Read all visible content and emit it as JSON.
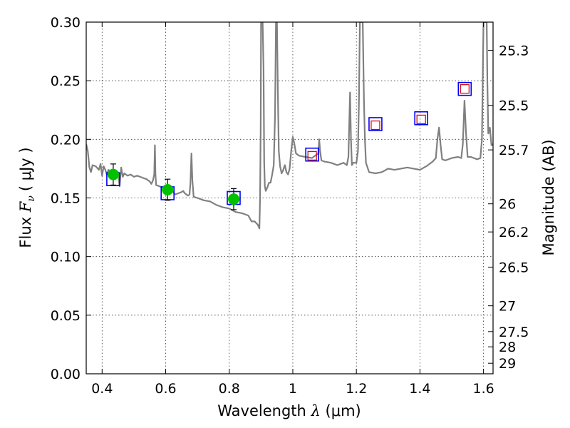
{
  "chart_data": {
    "type": "line",
    "xlabel": "Wavelength",
    "xlabel_symbol": "λ",
    "xlabel_unit": "(μm)",
    "ylabel": "Flux",
    "ylabel_symbol": "F",
    "ylabel_subscript": "ν",
    "ylabel_unit": "( μJy )",
    "y2label": "Magnitude (AB)",
    "xlim": [
      0.35,
      1.63
    ],
    "ylim": [
      0.0,
      0.3
    ],
    "grid": true,
    "x_ticks": [
      0.4,
      0.6,
      0.8,
      1.0,
      1.2,
      1.4,
      1.6
    ],
    "x_tick_labels": [
      "0.4",
      "0.6",
      "0.8",
      "1",
      "1.2",
      "1.4",
      "1.6"
    ],
    "y_ticks": [
      0.0,
      0.05,
      0.1,
      0.15,
      0.2,
      0.25,
      0.3
    ],
    "y_tick_labels": [
      "0.00",
      "0.05",
      "0.10",
      "0.15",
      "0.20",
      "0.25",
      "0.30"
    ],
    "y2_ticks": [
      {
        "label": "25.3",
        "flux": 0.276
      },
      {
        "label": "25.5",
        "flux": 0.229
      },
      {
        "label": "25.7",
        "flux": 0.191
      },
      {
        "label": "26",
        "flux": 0.145
      },
      {
        "label": "26.2",
        "flux": 0.121
      },
      {
        "label": "26.5",
        "flux": 0.091
      },
      {
        "label": "27",
        "flux": 0.058
      },
      {
        "label": "27.5",
        "flux": 0.036
      },
      {
        "label": "28",
        "flux": 0.023
      },
      {
        "label": "29",
        "flux": 0.009
      }
    ],
    "model_spectrum": {
      "color": "#808080",
      "points": [
        [
          0.35,
          0.196
        ],
        [
          0.355,
          0.19
        ],
        [
          0.36,
          0.176
        ],
        [
          0.365,
          0.172
        ],
        [
          0.37,
          0.178
        ],
        [
          0.38,
          0.177
        ],
        [
          0.39,
          0.174
        ],
        [
          0.395,
          0.179
        ],
        [
          0.4,
          0.169
        ],
        [
          0.405,
          0.177
        ],
        [
          0.41,
          0.174
        ],
        [
          0.415,
          0.17
        ],
        [
          0.42,
          0.174
        ],
        [
          0.43,
          0.172
        ],
        [
          0.44,
          0.17
        ],
        [
          0.45,
          0.172
        ],
        [
          0.455,
          0.16
        ],
        [
          0.46,
          0.176
        ],
        [
          0.465,
          0.168
        ],
        [
          0.47,
          0.171
        ],
        [
          0.48,
          0.169
        ],
        [
          0.49,
          0.17
        ],
        [
          0.5,
          0.168
        ],
        [
          0.51,
          0.169
        ],
        [
          0.52,
          0.168
        ],
        [
          0.53,
          0.167
        ],
        [
          0.54,
          0.166
        ],
        [
          0.55,
          0.164
        ],
        [
          0.555,
          0.162
        ],
        [
          0.56,
          0.165
        ],
        [
          0.564,
          0.17
        ],
        [
          0.566,
          0.195
        ],
        [
          0.568,
          0.17
        ],
        [
          0.57,
          0.161
        ],
        [
          0.58,
          0.16
        ],
        [
          0.59,
          0.159
        ],
        [
          0.6,
          0.157
        ],
        [
          0.61,
          0.157
        ],
        [
          0.62,
          0.156
        ],
        [
          0.63,
          0.153
        ],
        [
          0.64,
          0.154
        ],
        [
          0.65,
          0.155
        ],
        [
          0.655,
          0.156
        ],
        [
          0.66,
          0.154
        ],
        [
          0.67,
          0.152
        ],
        [
          0.675,
          0.153
        ],
        [
          0.678,
          0.163
        ],
        [
          0.681,
          0.188
        ],
        [
          0.684,
          0.165
        ],
        [
          0.688,
          0.151
        ],
        [
          0.7,
          0.15
        ],
        [
          0.72,
          0.148
        ],
        [
          0.74,
          0.147
        ],
        [
          0.76,
          0.144
        ],
        [
          0.78,
          0.142
        ],
        [
          0.8,
          0.141
        ],
        [
          0.82,
          0.138
        ],
        [
          0.84,
          0.137
        ],
        [
          0.86,
          0.135
        ],
        [
          0.87,
          0.13
        ],
        [
          0.88,
          0.13
        ],
        [
          0.89,
          0.127
        ],
        [
          0.895,
          0.124
        ],
        [
          0.897,
          0.15
        ],
        [
          0.899,
          0.21
        ],
        [
          0.9,
          0.3
        ],
        [
          0.905,
          0.3
        ],
        [
          0.908,
          0.26
        ],
        [
          0.91,
          0.18
        ],
        [
          0.912,
          0.16
        ],
        [
          0.915,
          0.156
        ],
        [
          0.92,
          0.159
        ],
        [
          0.925,
          0.163
        ],
        [
          0.93,
          0.163
        ],
        [
          0.935,
          0.17
        ],
        [
          0.94,
          0.178
        ],
        [
          0.944,
          0.22
        ],
        [
          0.947,
          0.3
        ],
        [
          0.95,
          0.3
        ],
        [
          0.953,
          0.24
        ],
        [
          0.956,
          0.19
        ],
        [
          0.96,
          0.177
        ],
        [
          0.965,
          0.171
        ],
        [
          0.97,
          0.174
        ],
        [
          0.975,
          0.178
        ],
        [
          0.98,
          0.172
        ],
        [
          0.985,
          0.17
        ],
        [
          0.99,
          0.175
        ],
        [
          0.995,
          0.19
        ],
        [
          1.0,
          0.202
        ],
        [
          1.005,
          0.196
        ],
        [
          1.01,
          0.188
        ],
        [
          1.02,
          0.186
        ],
        [
          1.04,
          0.185
        ],
        [
          1.06,
          0.184
        ],
        [
          1.08,
          0.188
        ],
        [
          1.083,
          0.2
        ],
        [
          1.086,
          0.19
        ],
        [
          1.09,
          0.182
        ],
        [
          1.1,
          0.181
        ],
        [
          1.12,
          0.18
        ],
        [
          1.14,
          0.178
        ],
        [
          1.16,
          0.18
        ],
        [
          1.17,
          0.178
        ],
        [
          1.175,
          0.185
        ],
        [
          1.18,
          0.24
        ],
        [
          1.183,
          0.2
        ],
        [
          1.186,
          0.178
        ],
        [
          1.19,
          0.18
        ],
        [
          1.2,
          0.18
        ],
        [
          1.205,
          0.19
        ],
        [
          1.208,
          0.23
        ],
        [
          1.211,
          0.3
        ],
        [
          1.216,
          0.3
        ],
        [
          1.22,
          0.3
        ],
        [
          1.224,
          0.23
        ],
        [
          1.227,
          0.2
        ],
        [
          1.23,
          0.18
        ],
        [
          1.24,
          0.172
        ],
        [
          1.26,
          0.171
        ],
        [
          1.28,
          0.172
        ],
        [
          1.3,
          0.175
        ],
        [
          1.32,
          0.174
        ],
        [
          1.34,
          0.175
        ],
        [
          1.36,
          0.176
        ],
        [
          1.38,
          0.175
        ],
        [
          1.4,
          0.174
        ],
        [
          1.42,
          0.177
        ],
        [
          1.44,
          0.181
        ],
        [
          1.45,
          0.184
        ],
        [
          1.455,
          0.2
        ],
        [
          1.46,
          0.21
        ],
        [
          1.465,
          0.195
        ],
        [
          1.47,
          0.183
        ],
        [
          1.48,
          0.182
        ],
        [
          1.5,
          0.184
        ],
        [
          1.52,
          0.185
        ],
        [
          1.53,
          0.184
        ],
        [
          1.535,
          0.196
        ],
        [
          1.54,
          0.233
        ],
        [
          1.545,
          0.205
        ],
        [
          1.55,
          0.185
        ],
        [
          1.56,
          0.185
        ],
        [
          1.58,
          0.183
        ],
        [
          1.59,
          0.184
        ],
        [
          1.595,
          0.2
        ],
        [
          1.6,
          0.3
        ],
        [
          1.61,
          0.3
        ],
        [
          1.612,
          0.25
        ],
        [
          1.615,
          0.205
        ],
        [
          1.62,
          0.21
        ],
        [
          1.625,
          0.195
        ],
        [
          1.63,
          0.196
        ]
      ]
    },
    "model_photometry": {
      "marker": "square",
      "color": "#0000ff",
      "points": [
        [
          0.435,
          0.166
        ],
        [
          0.606,
          0.154
        ],
        [
          0.814,
          0.15
        ],
        [
          1.061,
          0.187
        ],
        [
          1.26,
          0.213
        ],
        [
          1.404,
          0.218
        ],
        [
          1.541,
          0.243
        ]
      ]
    },
    "observed_detections": {
      "marker": "circle",
      "color": "#00c000",
      "points": [
        {
          "x": 0.435,
          "y": 0.17,
          "yerr": 0.009
        },
        {
          "x": 0.606,
          "y": 0.157,
          "yerr": 0.009
        },
        {
          "x": 0.814,
          "y": 0.149,
          "yerr": 0.009
        }
      ]
    },
    "observed_upper_limits": {
      "marker": "square-open",
      "color": "#cc0000",
      "points": [
        [
          1.061,
          0.186
        ],
        [
          1.26,
          0.212
        ],
        [
          1.404,
          0.217
        ],
        [
          1.541,
          0.243
        ]
      ]
    }
  }
}
